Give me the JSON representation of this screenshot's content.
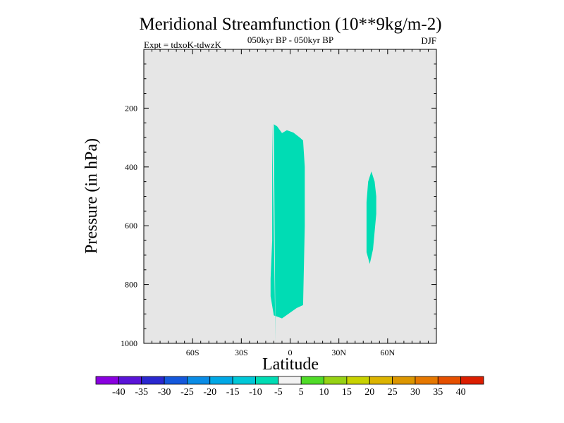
{
  "chart_data": {
    "type": "heatmap",
    "title": "Meridional Streamfunction (10**9kg/m-2)",
    "subtitle": "050kyr BP - 050kyr BP",
    "left_label": "Expt = tdxoK-tdwzK",
    "right_label": "DJF",
    "xlabel": "Latitude",
    "ylabel": "Pressure (in hPa)",
    "xlim": [
      -90,
      90
    ],
    "ylim": [
      1000,
      0
    ],
    "x_ticks": [
      {
        "value": -60,
        "label": "60S"
      },
      {
        "value": -30,
        "label": "30S"
      },
      {
        "value": 0,
        "label": "0"
      },
      {
        "value": 30,
        "label": "30N"
      },
      {
        "value": 60,
        "label": "60N"
      }
    ],
    "y_ticks": [
      {
        "value": 200,
        "label": "200"
      },
      {
        "value": 400,
        "label": "400"
      },
      {
        "value": 600,
        "label": "600"
      },
      {
        "value": 800,
        "label": "800"
      },
      {
        "value": 1000,
        "label": "1000"
      }
    ],
    "background_color": "#e6e6e6",
    "regions": [
      {
        "level": "-10 to -5",
        "color": "#00dcb4",
        "outline": [
          [
            -9,
            1000
          ],
          [
            -10,
            255
          ],
          [
            -8,
            262
          ],
          [
            -5,
            285
          ],
          [
            -2,
            275
          ],
          [
            2,
            283
          ],
          [
            6,
            300
          ],
          [
            8,
            310
          ],
          [
            9,
            400
          ],
          [
            9,
            600
          ],
          [
            8,
            870
          ],
          [
            4,
            880
          ],
          [
            -5,
            915
          ],
          [
            -10,
            905
          ],
          [
            -12,
            840
          ],
          [
            -12,
            780
          ],
          [
            -11,
            650
          ],
          [
            -11,
            400
          ],
          [
            -11,
            255
          ]
        ]
      },
      {
        "level": "-10 to -5",
        "color": "#00dcb4",
        "outline": [
          [
            50,
            415
          ],
          [
            52,
            450
          ],
          [
            53,
            500
          ],
          [
            53,
            560
          ],
          [
            52,
            620
          ],
          [
            51,
            680
          ],
          [
            49,
            730
          ],
          [
            47,
            690
          ],
          [
            47,
            600
          ],
          [
            47,
            520
          ],
          [
            48,
            450
          ]
        ]
      }
    ],
    "colorbar": {
      "labels": [
        "-40",
        "-35",
        "-30",
        "-25",
        "-20",
        "-15",
        "-10",
        "-5",
        "5",
        "10",
        "15",
        "20",
        "25",
        "30",
        "35",
        "40"
      ],
      "colors": [
        "#8a00e0",
        "#5a14d8",
        "#2a28d0",
        "#1458dc",
        "#0a8ce6",
        "#00a8e6",
        "#00c8d8",
        "#00dcb4",
        "#f2f2f2",
        "#50dc28",
        "#96d214",
        "#c8d200",
        "#dcb400",
        "#dc9600",
        "#e67800",
        "#e65000",
        "#dc1e00"
      ]
    }
  }
}
